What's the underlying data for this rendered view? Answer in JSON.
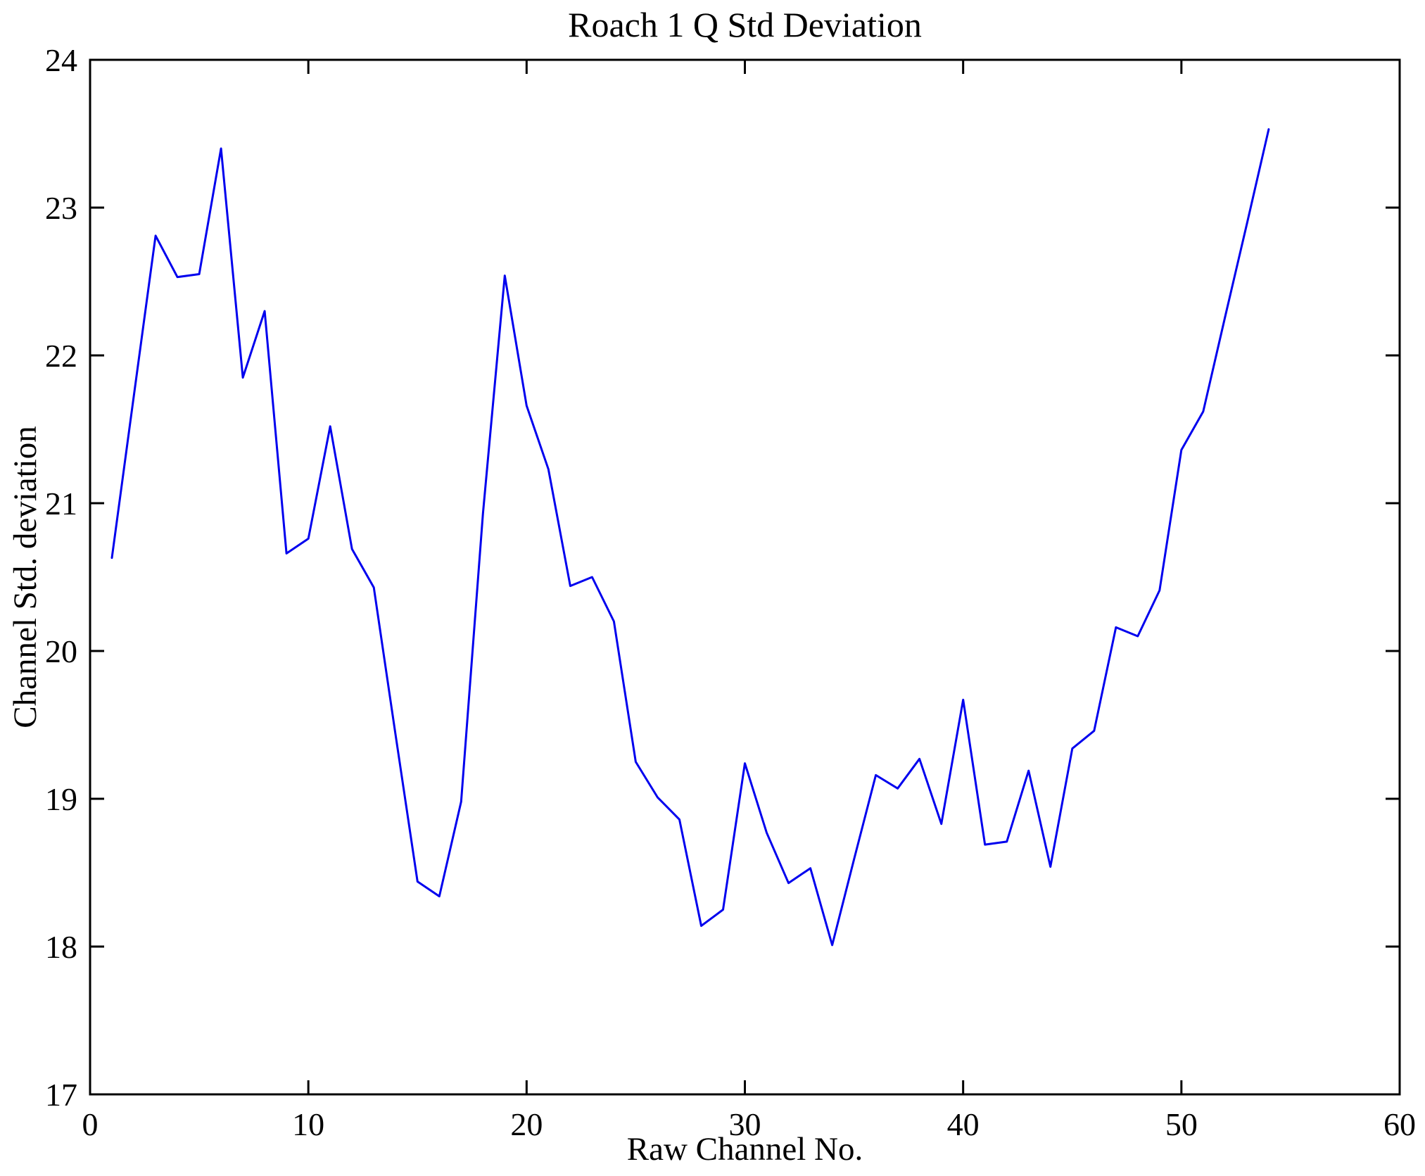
{
  "chart_data": {
    "type": "line",
    "title": "Roach 1 Q Std Deviation",
    "xlabel": "Raw Channel No.",
    "ylabel": "Channel Std. deviation",
    "xlim": [
      0,
      60
    ],
    "ylim": [
      17,
      24
    ],
    "x_ticks": [
      0,
      10,
      20,
      30,
      40,
      50,
      60
    ],
    "y_ticks": [
      17,
      18,
      19,
      20,
      21,
      22,
      23,
      24
    ],
    "grid": false,
    "legend": false,
    "line_color": "#0000ee",
    "axis_color": "#000000",
    "background_color": "#ffffff",
    "x": [
      1,
      2,
      3,
      4,
      5,
      6,
      7,
      8,
      9,
      10,
      11,
      12,
      13,
      14,
      15,
      16,
      17,
      18,
      19,
      20,
      21,
      22,
      23,
      24,
      25,
      26,
      27,
      28,
      29,
      30,
      31,
      32,
      33,
      34,
      35,
      36,
      37,
      38,
      39,
      40,
      41,
      42,
      43,
      44,
      45,
      46,
      47,
      48,
      49,
      50,
      51,
      52,
      53,
      54
    ],
    "y": [
      20.63,
      21.72,
      22.81,
      22.53,
      22.55,
      23.4,
      21.85,
      22.3,
      20.66,
      20.76,
      21.52,
      20.69,
      20.43,
      19.43,
      18.44,
      18.34,
      18.98,
      20.93,
      22.54,
      21.66,
      21.23,
      20.44,
      20.5,
      20.2,
      19.25,
      19.01,
      18.86,
      18.14,
      18.25,
      19.24,
      18.77,
      18.43,
      18.53,
      18.01,
      18.59,
      19.16,
      19.07,
      19.27,
      18.83,
      19.67,
      18.69,
      18.71,
      19.19,
      18.54,
      19.34,
      19.46,
      20.16,
      20.1,
      20.41,
      21.36,
      21.62,
      22.26,
      22.89,
      23.53
    ]
  }
}
